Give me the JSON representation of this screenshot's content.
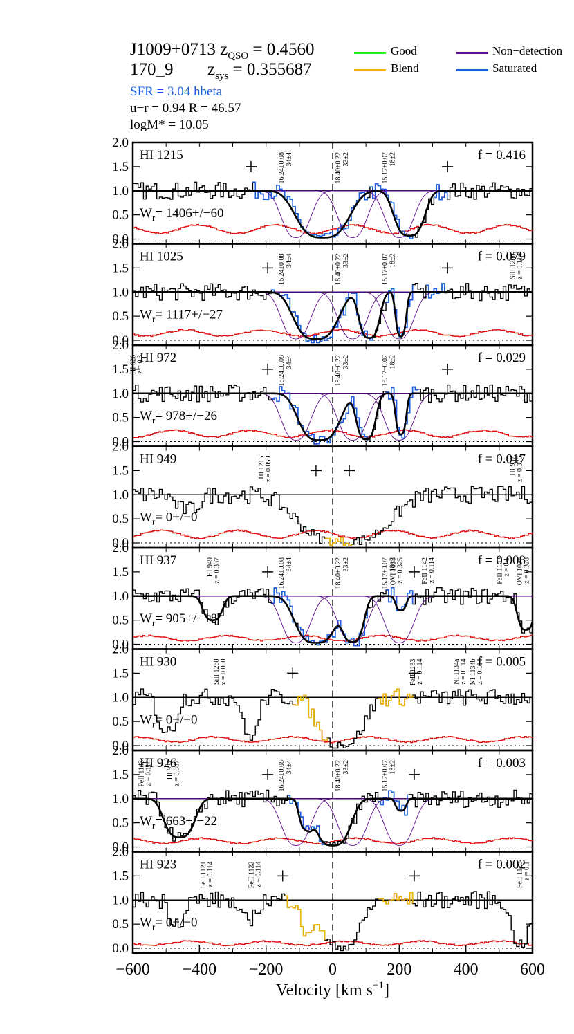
{
  "header": {
    "qso_label": "J1009+0713 z",
    "qso_sub": "QSO",
    "qso_value": " = 0.4560",
    "galaxy": "170_9",
    "sys_label": "z",
    "sys_sub": "sys",
    "sys_value": " = 0.355687",
    "sfr_line": "SFR =  3.04  hbeta",
    "ur_line": "u−r = 0.94   R =  46.57",
    "mass_line": "logM*  =  10.05"
  },
  "legend": {
    "good": "Good",
    "blend": "Blend",
    "nondet": "Non−detection",
    "saturated": "Saturated"
  },
  "colors": {
    "good": "#22ee22",
    "blend": "#f0b400",
    "nondet": "#5a0a8c",
    "saturated": "#1a5fe0",
    "error": "#e01010",
    "sfr": "#1a5fe0"
  },
  "chart_data": {
    "type": "line",
    "xlabel": "Velocity [km s",
    "xlabel_sup": "−1",
    "xlabel_end": "]",
    "xlim": [
      -600,
      600
    ],
    "xticks": [
      "−600",
      "−400",
      "−200",
      "0",
      "200",
      "400",
      "600"
    ],
    "xtick_values": [
      -600,
      -400,
      -200,
      0,
      200,
      400,
      600
    ],
    "ylim": [
      -0.1,
      2.0
    ],
    "yticks": [
      "0.0",
      "0.5",
      "1.0",
      "1.5",
      "2.0"
    ],
    "ytick_values": [
      0.0,
      0.5,
      1.0,
      1.5,
      2.0
    ],
    "components": [
      {
        "v": -110,
        "label": "16.24±0.08",
        "label2": "34±4"
      },
      {
        "v": 60,
        "label": "18.40±0.22",
        "label2": "33±2"
      },
      {
        "v": 200,
        "label": "15.17±0.07",
        "label2": "18±2"
      }
    ],
    "panels": [
      {
        "line": "HI 1215",
        "f": "f = 0.416",
        "w": "W",
        "w_sub": "r",
        "w_val": "= 1406+/−60",
        "fit": true,
        "plus": [
          -245,
          345
        ],
        "noise": 0.25,
        "troughs": [
          {
            "c": -30,
            "w": 190,
            "d": 0.97
          },
          {
            "c": 230,
            "w": 110,
            "d": 0.93
          }
        ],
        "emph": [
          [
            -240,
            -120,
            "saturated"
          ],
          [
            -120,
            110,
            "saturated"
          ],
          [
            110,
            240,
            "saturated"
          ],
          [
            300,
            345,
            "saturated"
          ]
        ],
        "ann": [],
        "comp": true
      },
      {
        "line": "HI 1025",
        "f": "f = 0.079",
        "w": "W",
        "w_sub": "r",
        "w_val": "= 1117+/−27",
        "fit": true,
        "plus": [
          -195,
          345
        ],
        "noise": 0.18,
        "troughs": [
          {
            "c": -50,
            "w": 160,
            "d": 0.97
          },
          {
            "c": 110,
            "w": 75,
            "d": 0.95
          },
          {
            "c": 205,
            "w": 38,
            "d": 0.92
          }
        ],
        "emph": [
          [
            -190,
            -120,
            "saturated"
          ],
          [
            -120,
            120,
            "saturated"
          ],
          [
            160,
            240,
            "saturated"
          ],
          [
            280,
            340,
            "saturated"
          ]
        ],
        "ann": [
          {
            "v": 560,
            "t": "SiII 1260",
            "t2": "z = 0.114"
          }
        ],
        "comp": true
      },
      {
        "line": "HI 972",
        "f": "f = 0.029",
        "w": "W",
        "w_sub": "r",
        "w_val": "= 978+/−26",
        "fit": true,
        "plus": [
          -195,
          345
        ],
        "noise": 0.2,
        "troughs": [
          {
            "c": -40,
            "w": 150,
            "d": 0.97
          },
          {
            "c": 100,
            "w": 70,
            "d": 0.95
          },
          {
            "c": 205,
            "w": 38,
            "d": 0.85
          }
        ],
        "emph": [
          [
            -190,
            -100,
            "saturated"
          ],
          [
            -100,
            110,
            "saturated"
          ],
          [
            160,
            260,
            "saturated"
          ]
        ],
        "ann": [
          {
            "v": -580,
            "t": "HI 926",
            "t2": "z = 0.3"
          }
        ],
        "comp": true
      },
      {
        "line": "HI 949",
        "f": "f = 0.017",
        "w": "W",
        "w_sub": "r",
        "w_val": "= 0+/−0",
        "fit": false,
        "plus": [
          -50,
          50
        ],
        "noise": 0.22,
        "troughs": [
          {
            "c": 30,
            "w": 330,
            "d": 0.97
          },
          {
            "c": -440,
            "w": 90,
            "d": 0.3
          }
        ],
        "emph": [
          [
            -30,
            60,
            "blend"
          ]
        ],
        "ann": [
          {
            "v": -195,
            "t": "HI 1215",
            "t2": "z = 0.059"
          },
          {
            "v": 560,
            "t": "HI 937",
            "t2": "z = 0.376"
          }
        ],
        "comp": false
      },
      {
        "line": "HI 937",
        "f": "f = 0.008",
        "w": "W",
        "w_sub": "r",
        "w_val": "= 905+/−18",
        "fit": true,
        "plus": [
          -195,
          245
        ],
        "noise": 0.15,
        "troughs": [
          {
            "c": -50,
            "w": 150,
            "d": 0.97
          },
          {
            "c": 60,
            "w": 80,
            "d": 0.95
          },
          {
            "c": 205,
            "w": 38,
            "d": 0.3
          },
          {
            "c": -360,
            "w": 70,
            "d": 0.5
          },
          {
            "c": 580,
            "w": 60,
            "d": 0.7
          }
        ],
        "emph": [
          [
            -190,
            -110,
            "saturated"
          ],
          [
            -110,
            110,
            "saturated"
          ],
          [
            160,
            240,
            "saturated"
          ]
        ],
        "ann": [
          {
            "v": -350,
            "t": "HI 949",
            "t2": "z = 0.337"
          },
          {
            "v": 200,
            "t": "OVI 1038",
            "t2": "z = 0.325"
          },
          {
            "v": 295,
            "t": "FeII 1142",
            "t2": "z = 0.114"
          },
          {
            "v": 520,
            "t": "FeII 1133",
            "t2": "z = 0.1"
          },
          {
            "v": 580,
            "t": "OVI 1037",
            "t2": "z = 0.328"
          }
        ],
        "comp": true
      },
      {
        "line": "HI 930",
        "f": "f = 0.005",
        "w": "W",
        "w_sub": "r",
        "w_val": "= 0+/−0",
        "fit": false,
        "plus": [
          -120,
          245
        ],
        "noise": 0.15,
        "troughs": [
          {
            "c": 20,
            "w": 170,
            "d": 0.97
          },
          {
            "c": -250,
            "w": 60,
            "d": 0.8
          },
          {
            "c": -500,
            "w": 70,
            "d": 0.7
          }
        ],
        "emph": [
          [
            -120,
            -10,
            "blend"
          ],
          [
            130,
            240,
            "blend"
          ]
        ],
        "ann": [
          {
            "v": -330,
            "t": "SiII 1260",
            "t2": "z = 0.000"
          },
          {
            "v": 260,
            "t": "FeII 1133",
            "t2": "z = 0.114"
          },
          {
            "v": 390,
            "t": "NI 1134a",
            "t2": "z = 0.114"
          },
          {
            "v": 440,
            "t": "NI 1134b",
            "t2": "z = 0.114"
          }
        ],
        "comp": false
      },
      {
        "line": "HI 926",
        "f": "f = 0.003",
        "w": "W",
        "w_sub": "r",
        "w_val": "= 663+/−22",
        "fit": true,
        "plus": [
          -195,
          245
        ],
        "noise": 0.15,
        "troughs": [
          {
            "c": 0,
            "w": 130,
            "d": 0.97
          },
          {
            "c": -80,
            "w": 50,
            "d": 0.6
          },
          {
            "c": 205,
            "w": 38,
            "d": 0.25
          },
          {
            "c": -460,
            "w": 110,
            "d": 0.8
          }
        ],
        "emph": [
          [
            -140,
            -20,
            "saturated"
          ],
          [
            130,
            230,
            "saturated"
          ]
        ],
        "ann": [
          {
            "v": -555,
            "t": "FeII 1143",
            "t2": "z = 0.114"
          },
          {
            "v": -470,
            "t": "HI 937",
            "t2": "z = 0.337"
          }
        ],
        "comp": true
      },
      {
        "line": "HI 923",
        "f": "f = 0.002",
        "w": "W",
        "w_sub": "r",
        "w_val": "= 0+/−0",
        "fit": false,
        "plus": [
          -150,
          245
        ],
        "noise": 0.12,
        "troughs": [
          {
            "c": 20,
            "w": 150,
            "d": 0.97
          },
          {
            "c": -80,
            "w": 40,
            "d": 0.75
          },
          {
            "c": -260,
            "w": 70,
            "d": 0.4
          },
          {
            "c": -470,
            "w": 60,
            "d": 0.45
          },
          {
            "c": 560,
            "w": 70,
            "d": 0.9
          }
        ],
        "emph": [
          [
            -150,
            -20,
            "blend"
          ],
          [
            130,
            240,
            "blend"
          ]
        ],
        "ann": [
          {
            "v": -370,
            "t": "FeII 1121",
            "t2": "z = 0.114"
          },
          {
            "v": -225,
            "t": "FeII 1122",
            "t2": "z = 0.114"
          },
          {
            "v": 580,
            "t": "FeII 1125",
            "t2": "z = 0.1"
          }
        ],
        "comp": false
      }
    ]
  }
}
